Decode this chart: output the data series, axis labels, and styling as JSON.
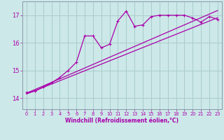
{
  "bg_color": "#cce8e8",
  "grid_color": "#aacccc",
  "line_color": "#aa00aa",
  "spine_color": "#8899aa",
  "x_ticks": [
    0,
    1,
    2,
    3,
    4,
    5,
    6,
    7,
    8,
    9,
    10,
    11,
    12,
    13,
    14,
    15,
    16,
    17,
    18,
    19,
    20,
    21,
    22,
    23
  ],
  "y_ticks": [
    14,
    15,
    16,
    17
  ],
  "ylim": [
    13.6,
    17.5
  ],
  "xlim": [
    -0.5,
    23.5
  ],
  "xlabel": "Windchill (Refroidissement éolien,°C)",
  "series1_x": [
    0,
    1,
    2,
    3,
    4,
    5,
    6,
    7,
    8,
    9,
    10,
    11,
    12,
    13,
    14,
    15,
    16,
    17,
    18,
    19,
    20,
    21,
    22,
    23
  ],
  "series1_y": [
    14.2,
    14.25,
    14.4,
    14.55,
    14.75,
    15.0,
    15.3,
    16.25,
    16.25,
    15.82,
    15.95,
    16.8,
    17.15,
    16.6,
    16.65,
    16.95,
    17.0,
    17.0,
    17.0,
    17.0,
    16.9,
    16.75,
    16.95,
    16.85
  ],
  "series2_x": [
    0,
    1,
    2,
    3,
    4,
    5,
    6,
    7,
    8,
    9,
    10,
    11,
    12,
    13,
    14,
    15,
    16,
    17,
    18,
    19,
    20,
    21,
    22,
    23
  ],
  "series2_y": [
    14.15,
    14.27,
    14.39,
    14.51,
    14.63,
    14.75,
    14.87,
    14.99,
    15.11,
    15.23,
    15.35,
    15.47,
    15.59,
    15.71,
    15.83,
    15.95,
    16.07,
    16.19,
    16.31,
    16.43,
    16.55,
    16.67,
    16.79,
    16.91
  ],
  "series3_x": [
    0,
    1,
    2,
    3,
    4,
    5,
    6,
    7,
    8,
    9,
    10,
    11,
    12,
    13,
    14,
    15,
    16,
    17,
    18,
    19,
    20,
    21,
    22,
    23
  ],
  "series3_y": [
    14.18,
    14.31,
    14.44,
    14.57,
    14.7,
    14.83,
    14.96,
    15.09,
    15.22,
    15.35,
    15.48,
    15.61,
    15.74,
    15.87,
    16.0,
    16.13,
    16.26,
    16.39,
    16.52,
    16.65,
    16.78,
    16.91,
    17.04,
    17.17
  ]
}
